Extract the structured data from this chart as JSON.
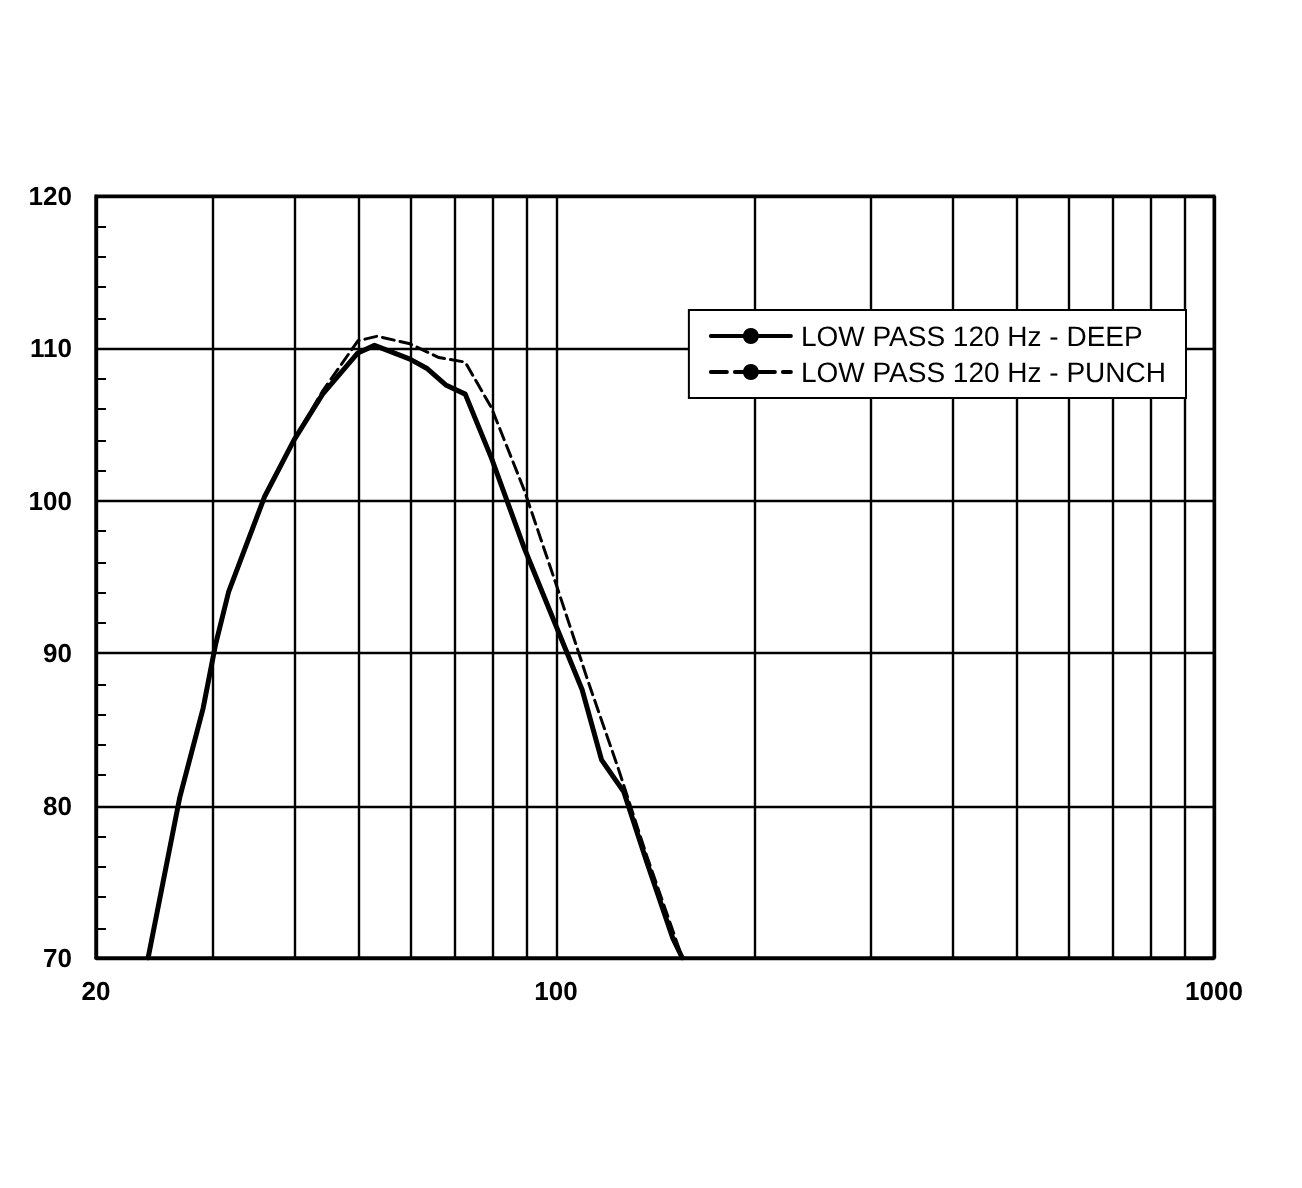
{
  "chart_data": {
    "type": "line",
    "log": "x",
    "grid": true,
    "legend": "top right",
    "marker": "none",
    "xlim": [
      20,
      1000
    ],
    "ylim": [
      70,
      120
    ],
    "xticks": [
      20,
      {
        "value": 30,
        "label": null
      },
      {
        "value": 40,
        "label": null
      },
      {
        "value": 50,
        "label": null
      },
      {
        "value": 60,
        "label": null
      },
      {
        "value": 70,
        "label": null
      },
      {
        "value": 80,
        "label": null
      },
      {
        "value": 90,
        "label": null
      },
      100,
      {
        "value": 200,
        "label": null
      },
      {
        "value": 300,
        "label": null
      },
      {
        "value": 400,
        "label": null
      },
      {
        "value": 500,
        "label": null
      },
      {
        "value": 600,
        "label": null
      },
      {
        "value": 700,
        "label": null
      },
      {
        "value": 800,
        "label": null
      },
      {
        "value": 900,
        "label": null
      },
      1000
    ],
    "yticks": [
      70,
      80,
      90,
      100,
      110,
      120
    ],
    "series": [
      {
        "name": "LOW PASS 120 Hz - DEEP",
        "color": "#000000",
        "line_style": "solid",
        "x": [
          24,
          26.8,
          29.1,
          30.4,
          31.8,
          33.7,
          36.1,
          40,
          44.2,
          50,
          53,
          60,
          63.6,
          68,
          72.8,
          79.8,
          89.5,
          100,
          109.6,
          117.3,
          126.8,
          137.4,
          150.5,
          155.6
        ],
        "values": [
          70,
          80.5,
          86.4,
          90.6,
          94,
          96.9,
          100.3,
          104,
          107,
          109.7,
          110.2,
          109.3,
          108.7,
          107.6,
          107,
          102.8,
          96.9,
          91.8,
          87.6,
          83,
          80.9,
          76.3,
          71.3,
          70
        ]
      },
      {
        "name": "LOW PASS 120 Hz - PUNCH",
        "color": "#000000",
        "line_style": "dashed",
        "x": [
          24,
          26.8,
          29.1,
          30.4,
          31.8,
          33.7,
          36.1,
          40,
          44.2,
          50,
          53.5,
          60,
          66.4,
          72.8,
          79.8,
          89.5,
          101,
          112,
          124,
          137.4,
          155.6
        ],
        "values": [
          70,
          80.5,
          86.4,
          90.6,
          94,
          96.9,
          100.3,
          104,
          107.2,
          110.5,
          110.8,
          110.3,
          109.4,
          109.1,
          106.1,
          100.7,
          94,
          88.1,
          82.6,
          76.7,
          70
        ]
      }
    ]
  }
}
